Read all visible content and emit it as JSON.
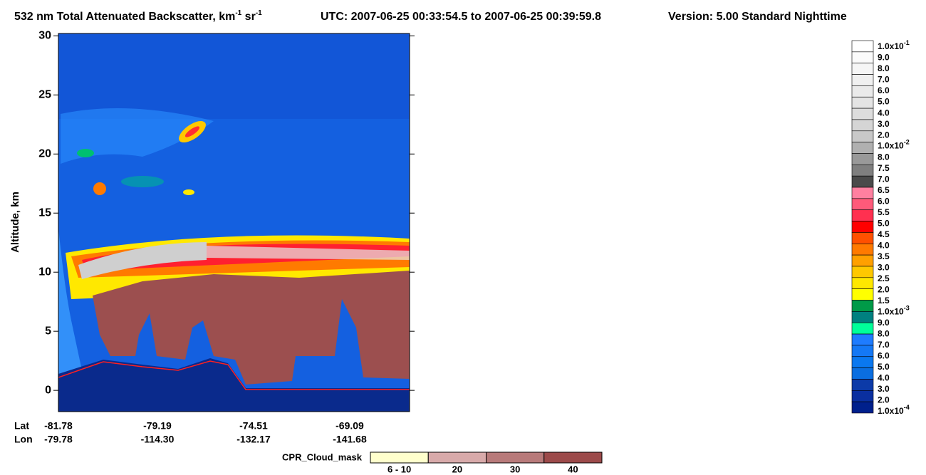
{
  "chart_data": {
    "type": "curtain",
    "title": [
      "532 nm Total Attenuated Backscatter, km",
      "-1",
      " sr",
      "-1"
    ],
    "utc": "UTC:  2007-06-25 00:33:54.5  to  2007-06-25 00:39:59.8",
    "version": "Version: 5.00  Standard  Nighttime",
    "y_label": "Altitude, km",
    "ylim": [
      -1.8,
      30.2
    ],
    "yticks": [
      0,
      5,
      10,
      15,
      20,
      25,
      30
    ],
    "x_row_labels": [
      "Lat",
      "Lon"
    ],
    "lat": [
      "-81.78",
      "-79.19",
      "-74.51",
      "-69.09"
    ],
    "lon": [
      "-79.78",
      "-114.30",
      "-132.17",
      "-141.68"
    ],
    "colorbar": {
      "labels": [
        {
          "text": "1.0x10",
          "sup": "-1"
        },
        "9.0",
        "8.0",
        "7.0",
        "6.0",
        "5.0",
        "4.0",
        "3.0",
        "2.0",
        {
          "text": "1.0x10",
          "sup": "-2"
        },
        "8.0",
        "7.5",
        "7.0",
        "6.5",
        "6.0",
        "5.5",
        "5.0",
        "4.5",
        "4.0",
        "3.5",
        "3.0",
        "2.5",
        "2.0",
        "1.5",
        {
          "text": "1.0x10",
          "sup": "-3"
        },
        "9.0",
        "8.0",
        "7.0",
        "6.0",
        "5.0",
        "4.0",
        "3.0",
        "2.0",
        {
          "text": "1.0x10",
          "sup": "-4"
        }
      ],
      "colors": [
        "#ffffff",
        "#fbfbfb",
        "#f6f6f6",
        "#f0f0f0",
        "#eaeaea",
        "#e4e4e4",
        "#dddddd",
        "#d5d5d5",
        "#c8c8c8",
        "#b0b0b0",
        "#999999",
        "#7f7f7f",
        "#4a4a4a",
        "#ff80a0",
        "#ff5a7a",
        "#ff3050",
        "#ff0000",
        "#ff5000",
        "#ff7a00",
        "#ffa000",
        "#ffc800",
        "#ffe800",
        "#ffff00",
        "#009a48",
        "#008080",
        "#00ff9a",
        "#1e7cff",
        "#1478f5",
        "#0a78f0",
        "#0a6ee0",
        "#0c3aa8",
        "#0a2fa0",
        "#00208c"
      ]
    },
    "cpr_legend": {
      "title": "CPR_Cloud_mask",
      "categories": [
        "6 - 10",
        "20",
        "30",
        "40"
      ],
      "colors": [
        "#ffffcc",
        "#d8aaaa",
        "#b87a7a",
        "#9c4a4a"
      ]
    }
  }
}
